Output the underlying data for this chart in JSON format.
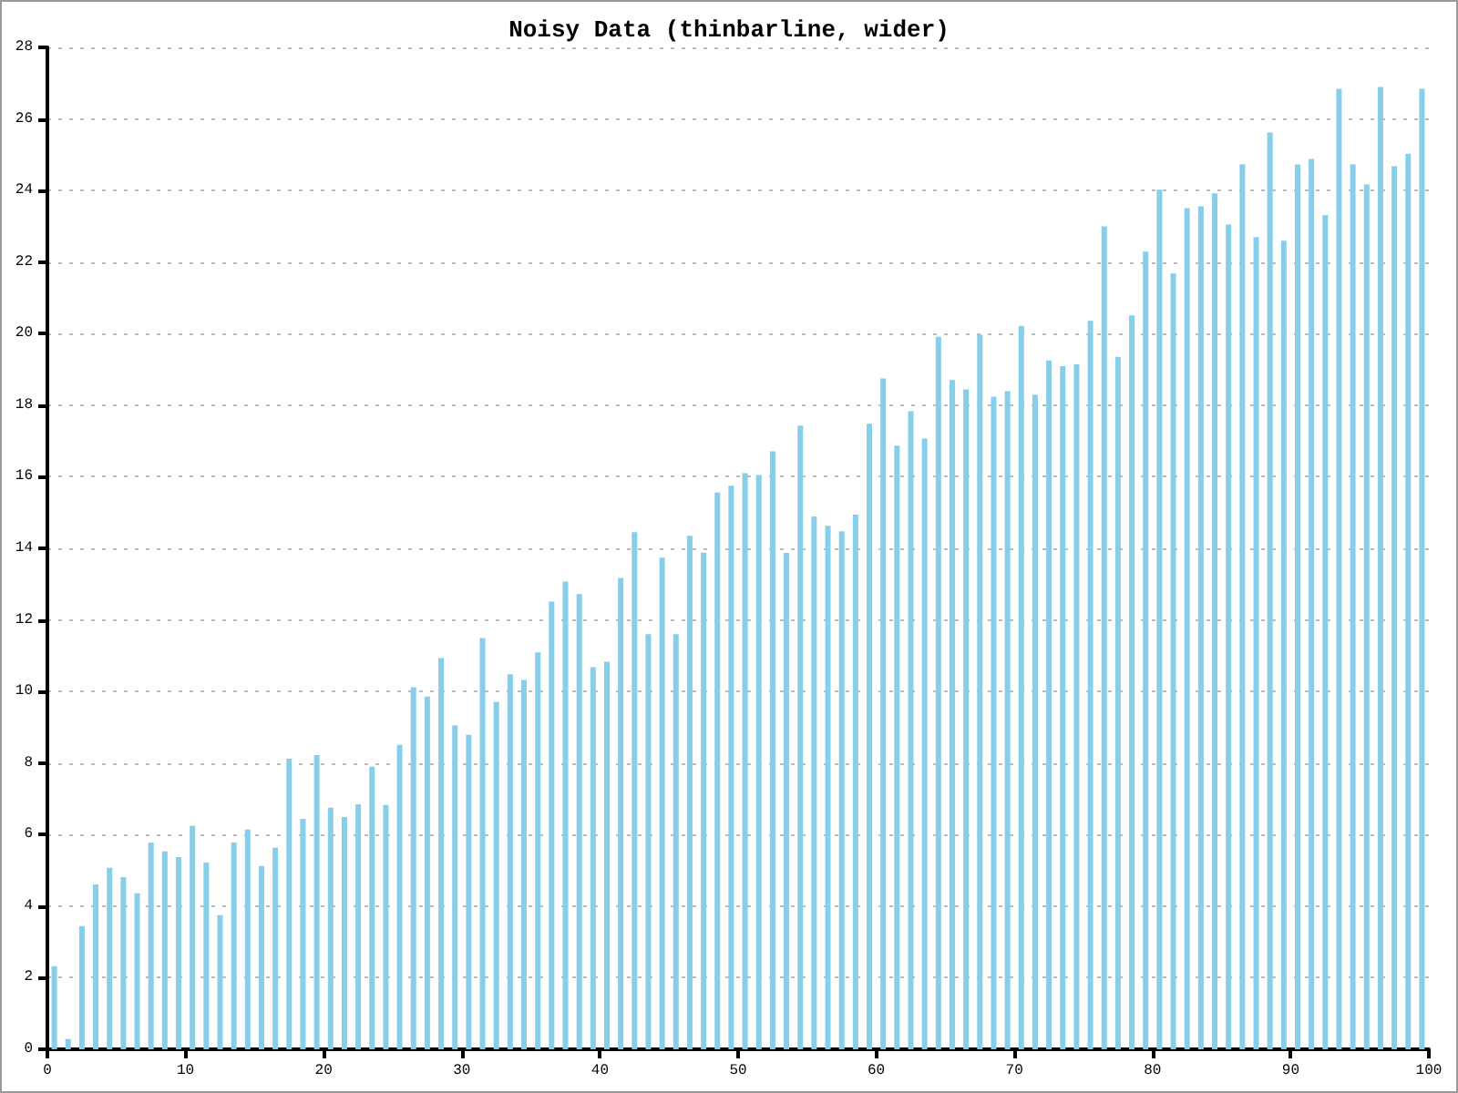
{
  "chart_data": {
    "type": "bar",
    "title": "Noisy Data (thinbarline, wider)",
    "x": [
      0.5,
      1.5,
      2.5,
      3.5,
      4.5,
      5.5,
      6.5,
      7.5,
      8.5,
      9.5,
      10.5,
      11.5,
      12.5,
      13.5,
      14.5,
      15.5,
      16.5,
      17.5,
      18.5,
      19.5,
      20.5,
      21.5,
      22.5,
      23.5,
      24.5,
      25.5,
      26.5,
      27.5,
      28.5,
      29.5,
      30.5,
      31.5,
      32.5,
      33.5,
      34.5,
      35.5,
      36.5,
      37.5,
      38.5,
      39.5,
      40.5,
      41.5,
      42.5,
      43.5,
      44.5,
      45.5,
      46.5,
      47.5,
      48.5,
      49.5,
      50.5,
      51.5,
      52.5,
      53.5,
      54.5,
      55.5,
      56.5,
      57.5,
      58.5,
      59.5,
      60.5,
      61.5,
      62.5,
      63.5,
      64.5,
      65.5,
      66.5,
      67.5,
      68.5,
      69.5,
      70.5,
      71.5,
      72.5,
      73.5,
      74.5,
      75.5,
      76.5,
      77.5,
      78.5,
      79.5,
      80.5,
      81.5,
      82.5,
      83.5,
      84.5,
      85.5,
      86.5,
      87.5,
      88.5,
      89.5,
      90.5,
      91.5,
      92.5,
      93.5,
      94.5,
      95.5,
      96.5,
      97.5,
      98.5,
      99.5
    ],
    "values": [
      2.32,
      0.29,
      3.44,
      4.61,
      5.07,
      4.81,
      4.36,
      5.78,
      5.53,
      5.37,
      6.24,
      5.22,
      3.75,
      5.78,
      6.14,
      5.12,
      5.63,
      8.12,
      6.44,
      8.22,
      6.75,
      6.49,
      6.85,
      7.9,
      6.83,
      8.51,
      10.12,
      9.86,
      10.93,
      9.05,
      8.79,
      11.49,
      9.71,
      10.48,
      10.32,
      11.09,
      12.51,
      13.07,
      12.72,
      10.68,
      10.83,
      13.17,
      14.45,
      11.6,
      13.74,
      11.6,
      14.35,
      13.88,
      15.56,
      15.75,
      16.1,
      16.05,
      16.71,
      13.87,
      17.43,
      14.89,
      14.63,
      14.48,
      14.94,
      17.48,
      18.75,
      16.87,
      17.83,
      17.07,
      19.91,
      18.7,
      18.44,
      19.97,
      18.24,
      18.39,
      20.22,
      18.29,
      19.25,
      19.09,
      19.14,
      20.36,
      23.0,
      19.35,
      20.51,
      22.29,
      24.02,
      21.68,
      23.51,
      23.56,
      23.92,
      23.05,
      24.73,
      22.7,
      25.62,
      22.6,
      24.73,
      24.88,
      23.31,
      26.84,
      24.73,
      24.17,
      26.89,
      24.68,
      25.03,
      26.84
    ],
    "color": "#87ceeb",
    "xlim": [
      0,
      100
    ],
    "xticks": [
      0,
      10,
      20,
      30,
      40,
      50,
      60,
      70,
      80,
      90,
      100
    ],
    "ylim": [
      0,
      28
    ],
    "yticks": [
      0,
      2,
      4,
      6,
      8,
      10,
      12,
      14,
      16,
      18,
      20,
      22,
      24,
      26,
      28
    ],
    "grid": "y"
  }
}
